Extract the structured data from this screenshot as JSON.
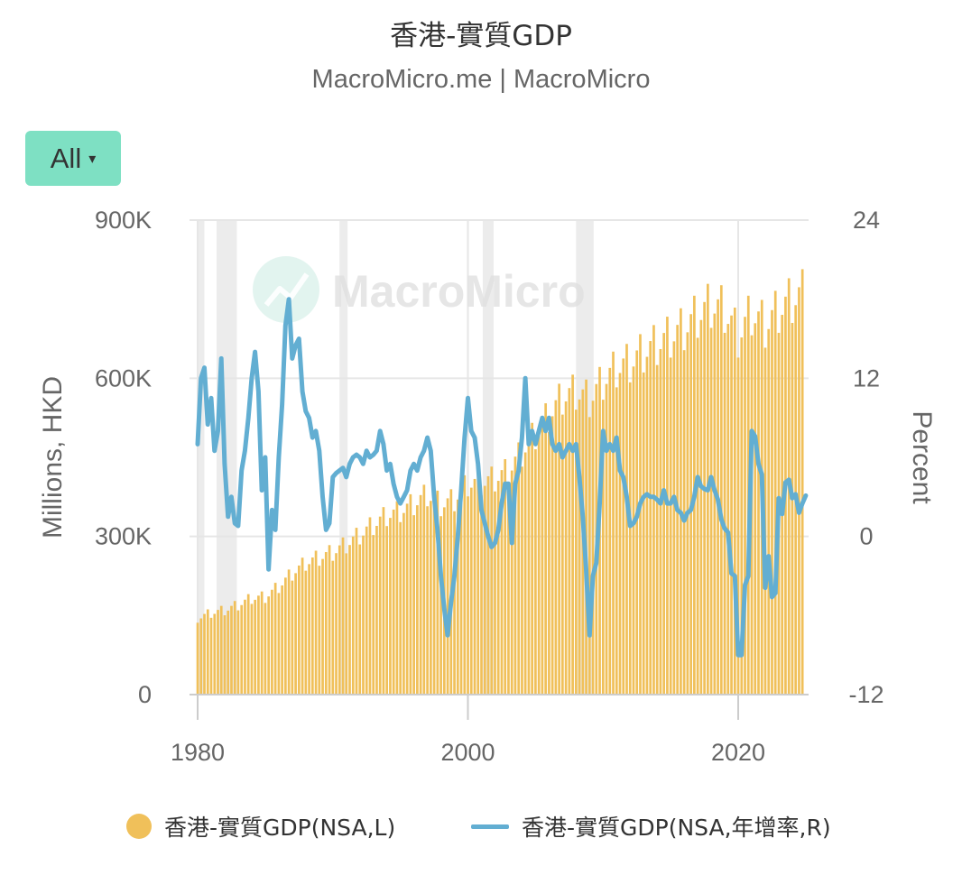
{
  "title": "香港-實質GDP",
  "subtitle": "MacroMicro.me | MacroMicro",
  "range_button": {
    "label": "All",
    "caret": "▾"
  },
  "watermark": {
    "text": "MacroMicro",
    "icon": "macromicro-logo-icon"
  },
  "colors": {
    "bars": "#f0c05a",
    "line": "#62aed2",
    "grid": "#e6e6e6",
    "recession": "#ececec"
  },
  "chart_data": {
    "type": "bar+line",
    "x_range": [
      1980,
      2025
    ],
    "x_ticks": [
      "1980",
      "2000",
      "2020"
    ],
    "y_left": {
      "label": "Millions, HKD",
      "ticks": [
        "0",
        "300K",
        "600K",
        "900K"
      ],
      "range": [
        0,
        900000
      ]
    },
    "y_right": {
      "label": "Percent",
      "ticks": [
        "-12",
        "0",
        "12",
        "24"
      ],
      "range": [
        -12,
        24
      ]
    },
    "recession_bands": [
      [
        1980.0,
        1980.5
      ],
      [
        1981.4,
        1982.9
      ],
      [
        1990.5,
        1991.1
      ],
      [
        2001.1,
        2001.9
      ],
      [
        2008.0,
        2009.3
      ]
    ],
    "legend": [
      {
        "name": "香港-實質GDP(NSA,L)",
        "marker": "dot"
      },
      {
        "name": "香港-實質GDP(NSA,年增率,R)",
        "marker": "line"
      }
    ],
    "series": [
      {
        "name": "香港-實質GDP(NSA,L)",
        "type": "bar",
        "axis": "left",
        "annual_quarterly_avg": {
          "1980": 145000,
          "1981": 155000,
          "1982": 160000,
          "1983": 170000,
          "1984": 183000,
          "1985": 185000,
          "1986": 205000,
          "1987": 230000,
          "1988": 250000,
          "1989": 260000,
          "1990": 270000,
          "1991": 285000,
          "1992": 303000,
          "1993": 322000,
          "1994": 340000,
          "1995": 348000,
          "1996": 362000,
          "1997": 380000,
          "1998": 360000,
          "1999": 370000,
          "2000": 400000,
          "2001": 402000,
          "2002": 410000,
          "2003": 425000,
          "2004": 460000,
          "2005": 495000,
          "2006": 530000,
          "2007": 565000,
          "2008": 575000,
          "2009": 560000,
          "2010": 595000,
          "2011": 620000,
          "2012": 630000,
          "2013": 650000,
          "2014": 665000,
          "2015": 680000,
          "2016": 695000,
          "2017": 720000,
          "2018": 740000,
          "2019": 730000,
          "2020": 680000,
          "2021": 725000,
          "2022": 700000,
          "2023": 730000,
          "2024": 750000
        },
        "seasonal_pattern": [
          0.94,
          0.98,
          1.02,
          1.06
        ]
      },
      {
        "name": "香港-實質GDP(NSA,年增率,R)",
        "type": "line",
        "axis": "right",
        "points": [
          [
            1980.0,
            7.0
          ],
          [
            1980.25,
            12.0
          ],
          [
            1980.5,
            12.8
          ],
          [
            1980.75,
            8.5
          ],
          [
            1981.0,
            10.5
          ],
          [
            1981.25,
            6.5
          ],
          [
            1981.5,
            8.0
          ],
          [
            1981.75,
            13.5
          ],
          [
            1982.0,
            5.5
          ],
          [
            1982.25,
            1.5
          ],
          [
            1982.5,
            3.0
          ],
          [
            1982.75,
            1.0
          ],
          [
            1983.0,
            0.8
          ],
          [
            1983.25,
            5.0
          ],
          [
            1983.5,
            6.5
          ],
          [
            1983.75,
            9.0
          ],
          [
            1984.0,
            12.0
          ],
          [
            1984.25,
            14.0
          ],
          [
            1984.5,
            11.0
          ],
          [
            1984.75,
            3.5
          ],
          [
            1985.0,
            6.0
          ],
          [
            1985.25,
            -2.5
          ],
          [
            1985.5,
            2.0
          ],
          [
            1985.75,
            0.5
          ],
          [
            1986.0,
            6.0
          ],
          [
            1986.25,
            10.0
          ],
          [
            1986.5,
            16.0
          ],
          [
            1986.75,
            18.0
          ],
          [
            1987.0,
            13.5
          ],
          [
            1987.25,
            14.5
          ],
          [
            1987.5,
            15.0
          ],
          [
            1987.75,
            11.0
          ],
          [
            1988.0,
            9.5
          ],
          [
            1988.25,
            9.0
          ],
          [
            1988.5,
            7.5
          ],
          [
            1988.75,
            8.0
          ],
          [
            1989.0,
            6.5
          ],
          [
            1989.25,
            3.0
          ],
          [
            1989.5,
            0.5
          ],
          [
            1989.75,
            1.0
          ],
          [
            1990.0,
            4.5
          ],
          [
            1990.25,
            4.8
          ],
          [
            1990.5,
            5.0
          ],
          [
            1990.75,
            5.2
          ],
          [
            1991.0,
            4.5
          ],
          [
            1991.25,
            5.5
          ],
          [
            1991.5,
            6.0
          ],
          [
            1991.75,
            6.2
          ],
          [
            1992.0,
            6.0
          ],
          [
            1992.25,
            5.5
          ],
          [
            1992.5,
            6.5
          ],
          [
            1992.75,
            6.0
          ],
          [
            1993.0,
            6.2
          ],
          [
            1993.25,
            6.5
          ],
          [
            1993.5,
            8.0
          ],
          [
            1993.75,
            7.0
          ],
          [
            1994.0,
            5.0
          ],
          [
            1994.25,
            5.5
          ],
          [
            1994.5,
            4.0
          ],
          [
            1994.75,
            3.0
          ],
          [
            1995.0,
            2.5
          ],
          [
            1995.25,
            3.0
          ],
          [
            1995.5,
            3.5
          ],
          [
            1995.75,
            5.0
          ],
          [
            1996.0,
            5.5
          ],
          [
            1996.25,
            5.0
          ],
          [
            1996.5,
            6.0
          ],
          [
            1996.75,
            6.5
          ],
          [
            1997.0,
            7.5
          ],
          [
            1997.25,
            6.5
          ],
          [
            1997.5,
            3.0
          ],
          [
            1997.75,
            0.5
          ],
          [
            1998.0,
            -3.0
          ],
          [
            1998.25,
            -5.5
          ],
          [
            1998.5,
            -7.5
          ],
          [
            1998.75,
            -5.0
          ],
          [
            1999.0,
            -3.0
          ],
          [
            1999.25,
            0.0
          ],
          [
            1999.5,
            3.5
          ],
          [
            1999.75,
            7.5
          ],
          [
            2000.0,
            10.5
          ],
          [
            2000.25,
            8.0
          ],
          [
            2000.5,
            7.5
          ],
          [
            2000.75,
            5.5
          ],
          [
            2001.0,
            2.0
          ],
          [
            2001.25,
            1.0
          ],
          [
            2001.5,
            0.0
          ],
          [
            2001.75,
            -0.8
          ],
          [
            2002.0,
            -0.5
          ],
          [
            2002.25,
            0.5
          ],
          [
            2002.5,
            2.5
          ],
          [
            2002.75,
            4.0
          ],
          [
            2003.0,
            4.0
          ],
          [
            2003.25,
            -0.5
          ],
          [
            2003.5,
            4.0
          ],
          [
            2003.75,
            5.0
          ],
          [
            2004.0,
            7.5
          ],
          [
            2004.25,
            12.0
          ],
          [
            2004.5,
            7.0
          ],
          [
            2004.75,
            8.0
          ],
          [
            2005.0,
            7.0
          ],
          [
            2005.25,
            8.0
          ],
          [
            2005.5,
            9.0
          ],
          [
            2005.75,
            8.0
          ],
          [
            2006.0,
            9.0
          ],
          [
            2006.25,
            7.0
          ],
          [
            2006.5,
            6.5
          ],
          [
            2006.75,
            7.0
          ],
          [
            2007.0,
            6.0
          ],
          [
            2007.25,
            6.5
          ],
          [
            2007.5,
            7.0
          ],
          [
            2007.75,
            6.5
          ],
          [
            2008.0,
            7.0
          ],
          [
            2008.25,
            4.5
          ],
          [
            2008.5,
            1.5
          ],
          [
            2008.75,
            -2.5
          ],
          [
            2009.0,
            -7.5
          ],
          [
            2009.25,
            -3.0
          ],
          [
            2009.5,
            -2.0
          ],
          [
            2009.75,
            2.5
          ],
          [
            2010.0,
            8.0
          ],
          [
            2010.25,
            6.5
          ],
          [
            2010.5,
            7.0
          ],
          [
            2010.75,
            6.5
          ],
          [
            2011.0,
            7.5
          ],
          [
            2011.25,
            5.0
          ],
          [
            2011.5,
            4.5
          ],
          [
            2011.75,
            3.0
          ],
          [
            2012.0,
            0.8
          ],
          [
            2012.25,
            1.0
          ],
          [
            2012.5,
            1.5
          ],
          [
            2012.75,
            2.5
          ],
          [
            2013.0,
            3.0
          ],
          [
            2013.25,
            3.2
          ],
          [
            2013.5,
            3.0
          ],
          [
            2013.75,
            3.0
          ],
          [
            2014.0,
            2.8
          ],
          [
            2014.25,
            2.5
          ],
          [
            2014.5,
            3.5
          ],
          [
            2014.75,
            2.5
          ],
          [
            2015.0,
            2.5
          ],
          [
            2015.25,
            3.0
          ],
          [
            2015.5,
            2.0
          ],
          [
            2015.75,
            1.8
          ],
          [
            2016.0,
            1.2
          ],
          [
            2016.25,
            1.8
          ],
          [
            2016.5,
            2.0
          ],
          [
            2016.75,
            3.0
          ],
          [
            2017.0,
            4.5
          ],
          [
            2017.25,
            3.8
          ],
          [
            2017.5,
            3.6
          ],
          [
            2017.75,
            3.5
          ],
          [
            2018.0,
            4.5
          ],
          [
            2018.25,
            3.5
          ],
          [
            2018.5,
            2.8
          ],
          [
            2018.75,
            1.3
          ],
          [
            2019.0,
            0.6
          ],
          [
            2019.25,
            0.3
          ],
          [
            2019.5,
            -2.8
          ],
          [
            2019.75,
            -3.0
          ],
          [
            2020.0,
            -9.0
          ],
          [
            2020.25,
            -9.0
          ],
          [
            2020.5,
            -3.7
          ],
          [
            2020.75,
            -3.0
          ],
          [
            2021.0,
            8.0
          ],
          [
            2021.25,
            7.6
          ],
          [
            2021.5,
            5.5
          ],
          [
            2021.75,
            4.7
          ],
          [
            2022.0,
            -3.9
          ],
          [
            2022.25,
            -1.5
          ],
          [
            2022.5,
            -4.6
          ],
          [
            2022.75,
            -4.3
          ],
          [
            2023.0,
            2.9
          ],
          [
            2023.25,
            1.7
          ],
          [
            2023.5,
            4.1
          ],
          [
            2023.75,
            4.3
          ],
          [
            2024.0,
            2.9
          ],
          [
            2024.25,
            3.2
          ],
          [
            2024.5,
            1.8
          ],
          [
            2024.75,
            2.5
          ],
          [
            2025.0,
            3.1
          ]
        ]
      }
    ]
  }
}
